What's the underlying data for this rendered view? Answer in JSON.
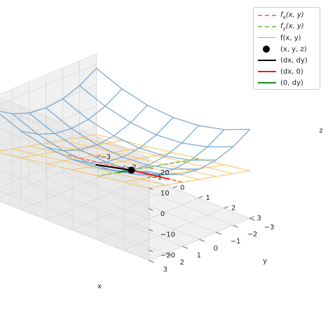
{
  "chart_data": {
    "type": "3d-surface",
    "title": "",
    "xlabel": "x",
    "ylabel": "y",
    "zlabel": "z",
    "xlim": [
      -3,
      3
    ],
    "ylim": [
      -3,
      3
    ],
    "zlim": [
      -25,
      25
    ],
    "x_ticks": [
      "−3",
      "−2",
      "−1",
      "0",
      "1",
      "2",
      "3"
    ],
    "y_ticks": [
      "−3",
      "−2",
      "−1",
      "0",
      "1",
      "2",
      "3"
    ],
    "z_ticks": [
      "−20",
      "−10",
      "0",
      "10",
      "20"
    ],
    "grid": true,
    "legend_placement": "top-right",
    "point": {
      "x": 1,
      "y": 1,
      "z": 2
    },
    "surface_grid": [
      -3,
      -2,
      -1,
      0,
      1,
      2,
      3
    ],
    "tangent_plane_grid": [
      -3,
      -2,
      -1,
      0,
      1,
      2,
      3
    ],
    "series": [
      {
        "name": "$f_x(x,y)$",
        "label": "f",
        "sub": "x",
        "args": "(x, y)",
        "style": "dashed",
        "color": "#ff7f7f"
      },
      {
        "name": "$f_y(x,y)$",
        "label": "f",
        "sub": "y",
        "args": "(x, y)",
        "style": "dashed",
        "color": "#8cc870"
      },
      {
        "name": "f(x, y)",
        "label": "f(x, y)",
        "style": "solid",
        "color": "#8ab4d8"
      },
      {
        "name": "(x, y, z)",
        "label": "(x, y, z)",
        "style": "point",
        "color": "#000000"
      },
      {
        "name": "(dx, dy)",
        "label": "(dx, dy)",
        "style": "solid",
        "color": "#000000"
      },
      {
        "name": "(dx, 0)",
        "label": "(dx, 0)",
        "style": "solid",
        "color": "#ee1c1c"
      },
      {
        "name": "(0, dy)",
        "label": "(0, dy)",
        "style": "solid",
        "color": "#1a8a1a"
      }
    ],
    "colors": {
      "surface": "#74a6d0",
      "tangent_plane": "#f7c25e",
      "pane": "#f0f0f0"
    }
  }
}
